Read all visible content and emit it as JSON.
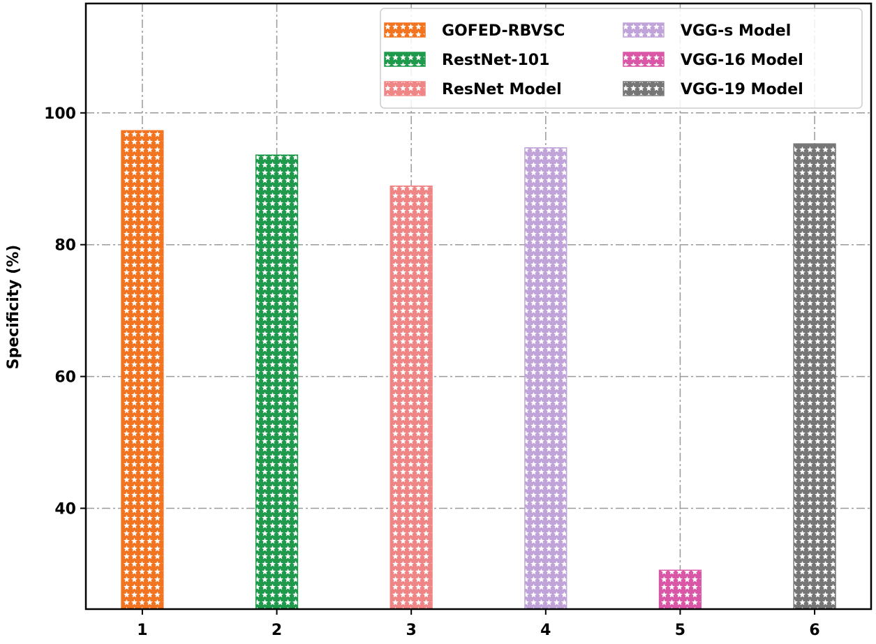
{
  "chart_data": {
    "type": "bar",
    "title": "",
    "xlabel": "",
    "ylabel": "Specificity (%)",
    "categories": [
      "1",
      "2",
      "3",
      "4",
      "5",
      "6"
    ],
    "series": [
      {
        "name": "GOFED-RBVSC",
        "x": 1,
        "value": 97.3,
        "color": "#f27420"
      },
      {
        "name": "RestNet-101",
        "x": 2,
        "value": 93.6,
        "color": "#1f9a4c"
      },
      {
        "name": "ResNet Model",
        "x": 3,
        "value": 88.9,
        "color": "#f08585"
      },
      {
        "name": "VGG-s Model",
        "x": 4,
        "value": 94.7,
        "color": "#c0a3d8"
      },
      {
        "name": "VGG-16 Model",
        "x": 5,
        "value": 30.6,
        "color": "#d957a6"
      },
      {
        "name": "VGG-19 Model",
        "x": 6,
        "value": 95.3,
        "color": "#767676"
      }
    ],
    "yticks": [
      40,
      60,
      80,
      100
    ],
    "xticks": [
      1,
      2,
      3,
      4,
      5,
      6
    ],
    "ylim": [
      24.7,
      116.6
    ],
    "xlim": [
      0.58,
      6.42
    ],
    "grid": true,
    "hatch": "stars",
    "legend_position": "top-right",
    "legend_columns": 2
  }
}
